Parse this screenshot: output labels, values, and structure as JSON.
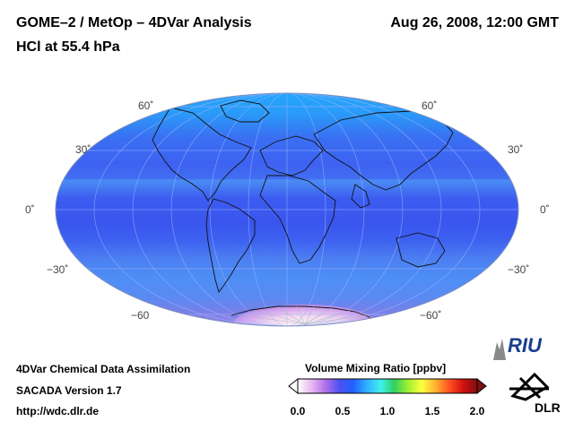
{
  "header": {
    "title_left": "GOME–2 / MetOp – 4DVar Analysis",
    "subtitle_left": "HCl at 55.4 hPa",
    "date": "Aug 26, 2008, 12:00 GMT"
  },
  "map": {
    "projection": "Mollweide",
    "latitude_labels": {
      "left": [
        "60˚",
        "30˚",
        "0˚",
        "−30˚",
        "−60"
      ],
      "right": [
        "60˚",
        "30˚",
        "0˚",
        "−30˚",
        "−60˚"
      ]
    },
    "latitude_values": [
      60,
      30,
      0,
      -30,
      -60
    ]
  },
  "colorbar": {
    "title": "Volume Mixing Ratio [ppbv]",
    "ticks": [
      "0.0",
      "0.5",
      "1.0",
      "1.5",
      "2.0"
    ],
    "range": [
      0.0,
      2.0
    ],
    "colors": [
      "#ffffff",
      "#e8b8f0",
      "#b070e8",
      "#5050f0",
      "#2060ff",
      "#30b0ff",
      "#40f0f0",
      "#30d060",
      "#a0f030",
      "#ffff40",
      "#ffb030",
      "#ff5020",
      "#d01010",
      "#801010"
    ]
  },
  "footer": {
    "line1": "4DVar Chemical Data Assimilation",
    "line2": "SACADA Version 1.7",
    "line3": "http://wdc.dlr.de"
  },
  "logos": {
    "riu": "RIU",
    "dlr": "DLR"
  }
}
